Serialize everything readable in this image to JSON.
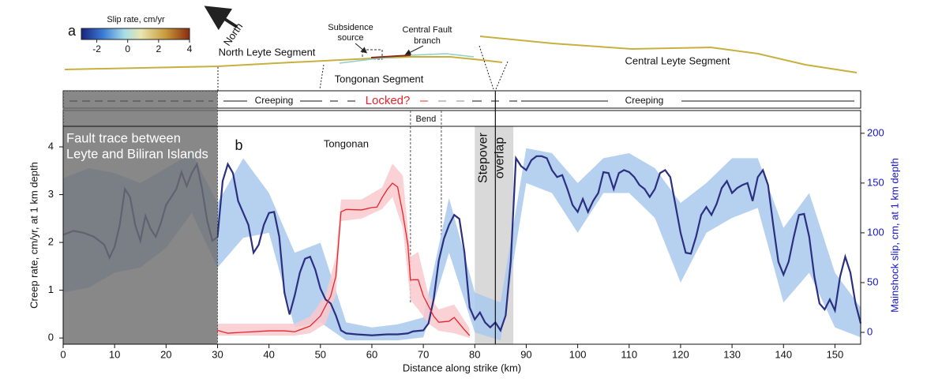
{
  "map": {
    "panel_label": "a",
    "colorbar": {
      "title": "Slip rate, cm/yr",
      "lim": [
        -3,
        4
      ],
      "ticks": [
        -2,
        0,
        2,
        4
      ]
    },
    "north": "North",
    "north_leyte": "North Leyte Segment",
    "subsidence": [
      "Subsidence",
      "source"
    ],
    "central_branch": [
      "Central Fault",
      "branch"
    ],
    "tongonan_segment": "Tongonan Segment",
    "central_leyte": "Central Leyte Segment"
  },
  "status": {
    "labels": [
      "Creeping",
      "Locked?",
      "Creeping"
    ]
  },
  "chart_data": {
    "type": "line",
    "panel_label": "b",
    "annotation": "Tongonan",
    "xlabel": "Distance along strike (km)",
    "ylabel": "Creep rate, cm/yr, at 1 km depth",
    "y2label": "Mainshock slip, cm, at 1 km depth",
    "xlim": [
      0,
      155
    ],
    "xticks": [
      0,
      10,
      20,
      30,
      40,
      50,
      60,
      70,
      80,
      90,
      100,
      110,
      120,
      130,
      140,
      150
    ],
    "ylim": [
      -0.13,
      4.43
    ],
    "yticks": [
      0,
      1,
      2,
      3,
      4
    ],
    "y2lim": [
      -11.9,
      207
    ],
    "y2ticks": [
      0,
      50,
      100,
      150,
      200
    ],
    "y2color": "#1414c8",
    "bands": [
      {
        "color": "#a9c8ec",
        "axis": "y2",
        "x": [
          0,
          5,
          10,
          15,
          20,
          25,
          30,
          35,
          40,
          45,
          50,
          55,
          60,
          65,
          70,
          75,
          80,
          85,
          90,
          95,
          100,
          105,
          110,
          115,
          120,
          125,
          130,
          135,
          140,
          145,
          150,
          155
        ],
        "lower": [
          40,
          45,
          60,
          65,
          85,
          120,
          65,
          95,
          100,
          5,
          10,
          -8,
          -8,
          -8,
          -5,
          80,
          0,
          -8,
          150,
          140,
          100,
          140,
          140,
          115,
          50,
          100,
          115,
          125,
          30,
          60,
          5,
          -5
        ],
        "upper": [
          155,
          165,
          160,
          150,
          165,
          180,
          130,
          175,
          140,
          80,
          90,
          10,
          5,
          8,
          15,
          135,
          40,
          30,
          185,
          180,
          150,
          175,
          180,
          165,
          130,
          150,
          175,
          175,
          105,
          140,
          60,
          25
        ]
      },
      {
        "color": "#f9c9cd",
        "x": [
          30,
          40,
          45,
          48,
          51,
          53,
          54,
          58,
          62,
          64,
          66,
          67.5,
          69,
          71,
          73,
          76,
          79
        ],
        "lower": [
          0.05,
          0.05,
          0.05,
          0.1,
          0.3,
          0.9,
          2.45,
          2.5,
          2.7,
          2.95,
          2.3,
          0.8,
          0.6,
          0.3,
          0.15,
          0.1,
          0.0
        ],
        "upper": [
          0.3,
          0.3,
          0.3,
          0.45,
          0.9,
          1.7,
          2.9,
          2.9,
          3.15,
          3.65,
          3.4,
          1.7,
          1.8,
          0.9,
          0.6,
          0.7,
          0.2
        ]
      }
    ],
    "series": [
      {
        "color": "#2b2f7f",
        "axis": "y2",
        "x": [
          0,
          2,
          4,
          6,
          8,
          9,
          10,
          11,
          12,
          13,
          14,
          15,
          16,
          17,
          18,
          19,
          20,
          22,
          23,
          24,
          25,
          26,
          27,
          28,
          29,
          30,
          31,
          32,
          33,
          34,
          35,
          36,
          37,
          38,
          39,
          40,
          41,
          42,
          43,
          44,
          45,
          46,
          47,
          48,
          49,
          50,
          51,
          52,
          53,
          54,
          55,
          57,
          60,
          63,
          65,
          67,
          68,
          70,
          71,
          72,
          73,
          74,
          75,
          76,
          77,
          78,
          79,
          80,
          81,
          82,
          83,
          84,
          85,
          86,
          87,
          88,
          89,
          90,
          91,
          92,
          93,
          94,
          95,
          96,
          97,
          98,
          99,
          100,
          101,
          102,
          103,
          104,
          105,
          106,
          107,
          108,
          109,
          110,
          111,
          112,
          113,
          114,
          115,
          116,
          117,
          118,
          119,
          120,
          121,
          122,
          123,
          124,
          125,
          126,
          127,
          128,
          129,
          130,
          131,
          132,
          133,
          134,
          135,
          136,
          137,
          138,
          139,
          140,
          141,
          142,
          143,
          144,
          145,
          146,
          147,
          148,
          149,
          150,
          151,
          152,
          153,
          154,
          155
        ],
        "values": [
          98,
          102,
          100,
          96,
          88,
          75,
          86,
          108,
          144,
          136,
          108,
          92,
          117,
          104,
          96,
          110,
          128,
          144,
          161,
          147,
          160,
          169,
          144,
          112,
          92,
          96,
          152,
          169,
          160,
          132,
          120,
          108,
          80,
          88,
          108,
          120,
          121,
          96,
          40,
          18,
          37,
          60,
          74,
          76,
          63,
          44,
          33,
          29,
          17,
          2,
          -1,
          -2,
          -3,
          -2,
          -2,
          -1,
          1,
          2,
          9,
          33,
          72,
          94,
          108,
          118,
          114,
          80,
          25,
          13,
          20,
          10,
          5,
          10,
          2,
          17,
          72,
          175,
          167,
          163,
          173,
          177,
          177,
          175,
          163,
          156,
          158,
          144,
          128,
          121,
          134,
          121,
          132,
          140,
          161,
          160,
          144,
          160,
          163,
          161,
          156,
          148,
          144,
          136,
          144,
          160,
          163,
          156,
          128,
          100,
          80,
          79,
          96,
          118,
          126,
          118,
          129,
          145,
          152,
          140,
          145,
          148,
          150,
          132,
          156,
          163,
          148,
          108,
          71,
          58,
          71,
          96,
          118,
          119,
          96,
          56,
          29,
          23,
          33,
          22,
          56,
          76,
          60,
          29,
          9
        ]
      },
      {
        "color": "#e8242a",
        "x": [
          30,
          32,
          35,
          40,
          43,
          45,
          48,
          50,
          52,
          53,
          54,
          55,
          58,
          60,
          61,
          62,
          63,
          64,
          65,
          66,
          67,
          67.5,
          68,
          69,
          70,
          72,
          73,
          75,
          76,
          78,
          79
        ],
        "values": [
          0.16,
          0.1,
          0.12,
          0.15,
          0.15,
          0.13,
          0.25,
          0.46,
          0.88,
          1.29,
          2.64,
          2.69,
          2.68,
          2.73,
          2.74,
          2.94,
          3.11,
          3.24,
          3.16,
          2.61,
          1.95,
          1.21,
          1.22,
          1.22,
          0.88,
          0.46,
          0.33,
          0.35,
          0.43,
          0.17,
          0.05
        ]
      }
    ],
    "regions": [
      {
        "x": [
          0,
          30
        ],
        "color": "#6e6e6e",
        "lines": [
          "Fault trace between",
          "Leyte and Biliran Islands"
        ]
      },
      {
        "x": [
          80,
          87.5
        ],
        "color": "#d9d9d9",
        "lines": [
          "Stepover",
          "overlap"
        ]
      }
    ],
    "fault_line": 84,
    "bend": {
      "x": [
        67.5,
        73.5
      ],
      "label": "Bend"
    }
  }
}
